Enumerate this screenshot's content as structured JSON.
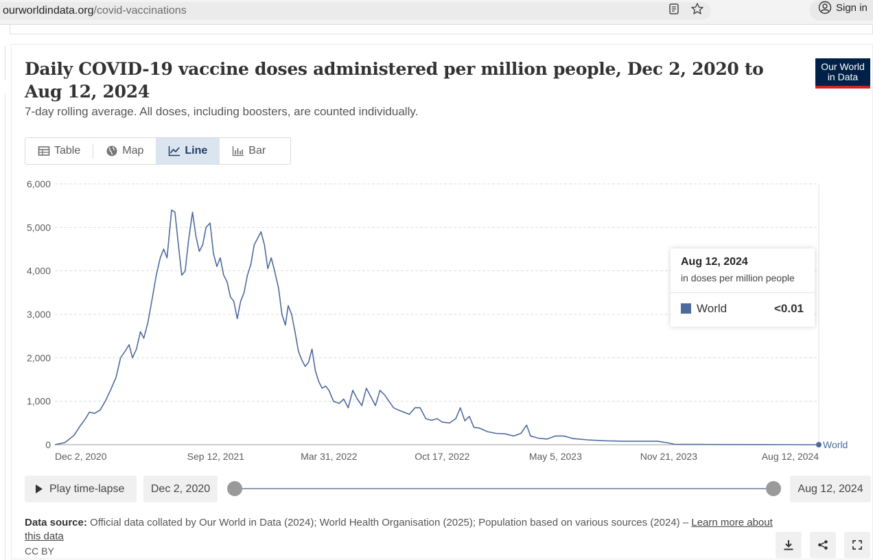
{
  "browser": {
    "url_domain": "ourworldindata.org",
    "url_path": "/covid-vaccinations",
    "signin_label": "Sign in"
  },
  "logo": {
    "line1": "Our World",
    "line2": "in Data"
  },
  "header": {
    "title": "Daily COVID-19 vaccine doses administered per million people, Dec 2, 2020 to Aug 12, 2024",
    "subtitle": "7-day rolling average. All doses, including boosters, are counted individually."
  },
  "tabs": [
    {
      "label": "Table",
      "icon": "table-icon"
    },
    {
      "label": "Map",
      "icon": "globe-icon"
    },
    {
      "label": "Line",
      "icon": "line-chart-icon",
      "active": true
    },
    {
      "label": "Bar",
      "icon": "bar-chart-icon"
    }
  ],
  "tooltip": {
    "date": "Aug 12, 2024",
    "unit": "in doses per million people",
    "series_name": "World",
    "value": "<0.01"
  },
  "timeline": {
    "play_label": "Play time-lapse",
    "start_label": "Dec 2, 2020",
    "end_label": "Aug 12, 2024"
  },
  "footer": {
    "source_label": "Data source:",
    "source_text": "Official data collated by Our World in Data (2024); World Health Organisation (2025); Population based on various sources (2024) –",
    "learn_more": "Learn more about this data",
    "license": "CC BY"
  },
  "colors": {
    "series": "#4c6a9c",
    "grid": "#dddddd",
    "brand": "#002147",
    "brand_accent": "#ce261e"
  },
  "chart_data": {
    "type": "line",
    "title": "Daily COVID-19 vaccine doses administered per million people, Dec 2, 2020 to Aug 12, 2024",
    "ylabel": "doses per million people",
    "ylim": [
      0,
      6000
    ],
    "yticks": [
      0,
      1000,
      2000,
      3000,
      4000,
      5000,
      6000
    ],
    "ytick_labels": [
      "0",
      "1,000",
      "2,000",
      "3,000",
      "4,000",
      "5,000",
      "6,000"
    ],
    "xlim": [
      "2020-12-02",
      "2024-08-12"
    ],
    "xticks": [
      "2020-12-02",
      "2021-09-12",
      "2022-03-31",
      "2022-10-17",
      "2023-05-05",
      "2023-11-21",
      "2024-08-12"
    ],
    "xtick_labels": [
      "Dec 2, 2020",
      "Sep 12, 2021",
      "Mar 31, 2022",
      "Oct 17, 2022",
      "May 5, 2023",
      "Nov 21, 2023",
      "Aug 12, 2024"
    ],
    "series": [
      {
        "name": "World",
        "end_label": "World",
        "points": [
          [
            "2020-12-02",
            0
          ],
          [
            "2020-12-20",
            50
          ],
          [
            "2021-01-05",
            220
          ],
          [
            "2021-01-15",
            420
          ],
          [
            "2021-01-25",
            600
          ],
          [
            "2021-02-01",
            750
          ],
          [
            "2021-02-10",
            720
          ],
          [
            "2021-02-20",
            800
          ],
          [
            "2021-03-01",
            1000
          ],
          [
            "2021-03-10",
            1250
          ],
          [
            "2021-03-20",
            1550
          ],
          [
            "2021-03-28",
            2000
          ],
          [
            "2021-04-05",
            2150
          ],
          [
            "2021-04-12",
            2300
          ],
          [
            "2021-04-18",
            2000
          ],
          [
            "2021-04-25",
            2200
          ],
          [
            "2021-05-02",
            2600
          ],
          [
            "2021-05-08",
            2450
          ],
          [
            "2021-05-15",
            2800
          ],
          [
            "2021-05-22",
            3300
          ],
          [
            "2021-05-30",
            3900
          ],
          [
            "2021-06-06",
            4300
          ],
          [
            "2021-06-12",
            4500
          ],
          [
            "2021-06-18",
            4300
          ],
          [
            "2021-06-26",
            5400
          ],
          [
            "2021-07-02",
            5350
          ],
          [
            "2021-07-08",
            4600
          ],
          [
            "2021-07-14",
            3900
          ],
          [
            "2021-07-20",
            4000
          ],
          [
            "2021-07-26",
            4700
          ],
          [
            "2021-08-02",
            5350
          ],
          [
            "2021-08-08",
            4800
          ],
          [
            "2021-08-14",
            4450
          ],
          [
            "2021-08-20",
            4600
          ],
          [
            "2021-08-26",
            5000
          ],
          [
            "2021-09-02",
            5100
          ],
          [
            "2021-09-08",
            4400
          ],
          [
            "2021-09-14",
            4100
          ],
          [
            "2021-09-20",
            4300
          ],
          [
            "2021-09-26",
            3900
          ],
          [
            "2021-10-02",
            3750
          ],
          [
            "2021-10-08",
            3400
          ],
          [
            "2021-10-14",
            3300
          ],
          [
            "2021-10-20",
            2900
          ],
          [
            "2021-10-26",
            3300
          ],
          [
            "2021-11-01",
            3500
          ],
          [
            "2021-11-07",
            3900
          ],
          [
            "2021-11-13",
            4150
          ],
          [
            "2021-11-19",
            4600
          ],
          [
            "2021-11-25",
            4750
          ],
          [
            "2021-12-01",
            4900
          ],
          [
            "2021-12-07",
            4600
          ],
          [
            "2021-12-13",
            4050
          ],
          [
            "2021-12-19",
            4300
          ],
          [
            "2021-12-25",
            4000
          ],
          [
            "2022-01-01",
            3600
          ],
          [
            "2022-01-07",
            3000
          ],
          [
            "2022-01-13",
            2750
          ],
          [
            "2022-01-18",
            3200
          ],
          [
            "2022-01-24",
            3000
          ],
          [
            "2022-01-30",
            2600
          ],
          [
            "2022-02-05",
            2150
          ],
          [
            "2022-02-11",
            1950
          ],
          [
            "2022-02-17",
            1800
          ],
          [
            "2022-02-23",
            1900
          ],
          [
            "2022-03-01",
            2200
          ],
          [
            "2022-03-07",
            1700
          ],
          [
            "2022-03-13",
            1450
          ],
          [
            "2022-03-19",
            1300
          ],
          [
            "2022-03-25",
            1350
          ],
          [
            "2022-03-31",
            1250
          ],
          [
            "2022-04-08",
            1000
          ],
          [
            "2022-04-18",
            950
          ],
          [
            "2022-04-26",
            1050
          ],
          [
            "2022-05-04",
            850
          ],
          [
            "2022-05-12",
            1250
          ],
          [
            "2022-05-20",
            1050
          ],
          [
            "2022-05-28",
            900
          ],
          [
            "2022-06-05",
            1300
          ],
          [
            "2022-06-13",
            1100
          ],
          [
            "2022-06-21",
            900
          ],
          [
            "2022-06-29",
            1250
          ],
          [
            "2022-07-07",
            1150
          ],
          [
            "2022-07-15",
            1000
          ],
          [
            "2022-07-23",
            850
          ],
          [
            "2022-07-31",
            800
          ],
          [
            "2022-08-10",
            750
          ],
          [
            "2022-08-20",
            700
          ],
          [
            "2022-08-30",
            850
          ],
          [
            "2022-09-08",
            850
          ],
          [
            "2022-09-18",
            600
          ],
          [
            "2022-09-28",
            560
          ],
          [
            "2022-10-08",
            600
          ],
          [
            "2022-10-17",
            520
          ],
          [
            "2022-10-30",
            500
          ],
          [
            "2022-11-10",
            600
          ],
          [
            "2022-11-18",
            850
          ],
          [
            "2022-11-26",
            550
          ],
          [
            "2022-12-04",
            650
          ],
          [
            "2022-12-12",
            400
          ],
          [
            "2022-12-22",
            380
          ],
          [
            "2023-01-05",
            300
          ],
          [
            "2023-01-20",
            260
          ],
          [
            "2023-02-05",
            250
          ],
          [
            "2023-02-20",
            200
          ],
          [
            "2023-03-05",
            260
          ],
          [
            "2023-03-15",
            450
          ],
          [
            "2023-03-22",
            200
          ],
          [
            "2023-04-05",
            150
          ],
          [
            "2023-04-20",
            130
          ],
          [
            "2023-05-05",
            200
          ],
          [
            "2023-05-20",
            200
          ],
          [
            "2023-06-05",
            140
          ],
          [
            "2023-07-01",
            110
          ],
          [
            "2023-08-01",
            90
          ],
          [
            "2023-09-01",
            80
          ],
          [
            "2023-10-01",
            80
          ],
          [
            "2023-11-01",
            80
          ],
          [
            "2023-11-21",
            40
          ],
          [
            "2023-12-01",
            10
          ],
          [
            "2024-02-01",
            5
          ],
          [
            "2024-05-01",
            3
          ],
          [
            "2024-08-12",
            0.005
          ]
        ]
      }
    ]
  }
}
